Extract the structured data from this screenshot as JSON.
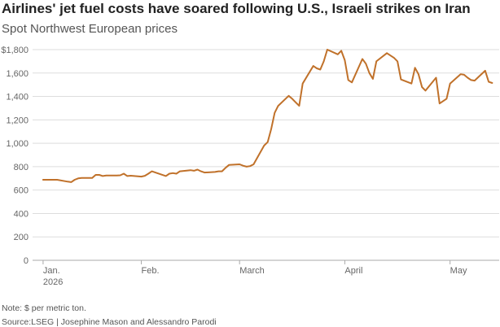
{
  "title": "Airlines' jet fuel costs have soared following U.S., Israeli strikes on Iran",
  "subtitle": "Spot Northwest European prices",
  "note": "Note: $ per metric ton.",
  "source": "Source:LSEG | Josephine Mason and Alessandro Parodi",
  "colors": {
    "line": "#c0712a",
    "grid": "#dddddd",
    "axis": "#aaaaaa",
    "text": "#666666"
  },
  "chart_data": {
    "type": "line",
    "title": "Airlines' jet fuel costs have soared following U.S., Israeli strikes on Iran",
    "subtitle": "Spot Northwest European prices",
    "ylabel": "",
    "xlabel": "",
    "ylim": [
      0,
      1800
    ],
    "yticks": [
      0,
      200,
      400,
      600,
      800,
      1000,
      1200,
      1400,
      1600,
      1800
    ],
    "ytick_labels": [
      "0",
      "200",
      "400",
      "600",
      "800",
      "1,000",
      "1,200",
      "1,400",
      "1,600",
      "$1,800"
    ],
    "xlim": [
      "2026-01-02",
      "2026-05-15"
    ],
    "xticks": [
      {
        "date": "2026-01-05",
        "label": "Jan.",
        "sublabel": "2026"
      },
      {
        "date": "2026-02-02",
        "label": "Feb.",
        "sublabel": ""
      },
      {
        "date": "2026-03-02",
        "label": "March",
        "sublabel": ""
      },
      {
        "date": "2026-04-01",
        "label": "April",
        "sublabel": ""
      },
      {
        "date": "2026-05-01",
        "label": "May",
        "sublabel": ""
      }
    ],
    "grid": true,
    "series": [
      {
        "x": [
          "2026-01-05",
          "2026-01-06",
          "2026-01-07",
          "2026-01-08",
          "2026-01-09",
          "2026-01-12",
          "2026-01-13",
          "2026-01-14",
          "2026-01-15",
          "2026-01-16",
          "2026-01-19",
          "2026-01-20",
          "2026-01-21",
          "2026-01-22",
          "2026-01-23",
          "2026-01-26",
          "2026-01-27",
          "2026-01-28",
          "2026-01-29",
          "2026-01-30",
          "2026-02-02",
          "2026-02-03",
          "2026-02-04",
          "2026-02-05",
          "2026-02-06",
          "2026-02-09",
          "2026-02-10",
          "2026-02-11",
          "2026-02-12",
          "2026-02-13",
          "2026-02-16",
          "2026-02-17",
          "2026-02-18",
          "2026-02-19",
          "2026-02-20",
          "2026-02-23",
          "2026-02-24",
          "2026-02-25",
          "2026-02-26",
          "2026-02-27",
          "2026-03-02",
          "2026-03-03",
          "2026-03-04",
          "2026-03-05",
          "2026-03-06",
          "2026-03-09",
          "2026-03-10",
          "2026-03-11",
          "2026-03-12",
          "2026-03-13",
          "2026-03-16",
          "2026-03-17",
          "2026-03-18",
          "2026-03-19",
          "2026-03-20",
          "2026-03-23",
          "2026-03-24",
          "2026-03-25",
          "2026-03-26",
          "2026-03-27",
          "2026-03-30",
          "2026-03-31",
          "2026-04-01",
          "2026-04-02",
          "2026-04-03",
          "2026-04-06",
          "2026-04-07",
          "2026-04-08",
          "2026-04-09",
          "2026-04-10",
          "2026-04-13",
          "2026-04-14",
          "2026-04-15",
          "2026-04-16",
          "2026-04-17",
          "2026-04-20",
          "2026-04-21",
          "2026-04-22",
          "2026-04-23",
          "2026-04-24",
          "2026-04-27",
          "2026-04-28",
          "2026-04-29",
          "2026-04-30",
          "2026-05-01",
          "2026-05-04",
          "2026-05-05",
          "2026-05-06",
          "2026-05-07",
          "2026-05-08",
          "2026-05-11",
          "2026-05-12",
          "2026-05-13"
        ],
        "y": [
          688,
          688,
          688,
          688,
          688,
          672,
          668,
          688,
          700,
          703,
          703,
          730,
          730,
          720,
          724,
          725,
          726,
          740,
          720,
          723,
          715,
          722,
          740,
          760,
          750,
          720,
          740,
          745,
          740,
          760,
          770,
          765,
          775,
          760,
          750,
          755,
          760,
          760,
          790,
          815,
          820,
          808,
          800,
          805,
          820,
          980,
          1010,
          1120,
          1260,
          1320,
          1405,
          1380,
          1350,
          1320,
          1510,
          1660,
          1640,
          1630,
          1700,
          1800,
          1760,
          1790,
          1710,
          1540,
          1520,
          1720,
          1680,
          1600,
          1550,
          1700,
          1770,
          1750,
          1730,
          1700,
          1545,
          1510,
          1645,
          1590,
          1480,
          1450,
          1560,
          1340,
          1360,
          1380,
          1510,
          1590,
          1585,
          1560,
          1540,
          1535,
          1620,
          1525,
          1515
        ]
      }
    ]
  }
}
